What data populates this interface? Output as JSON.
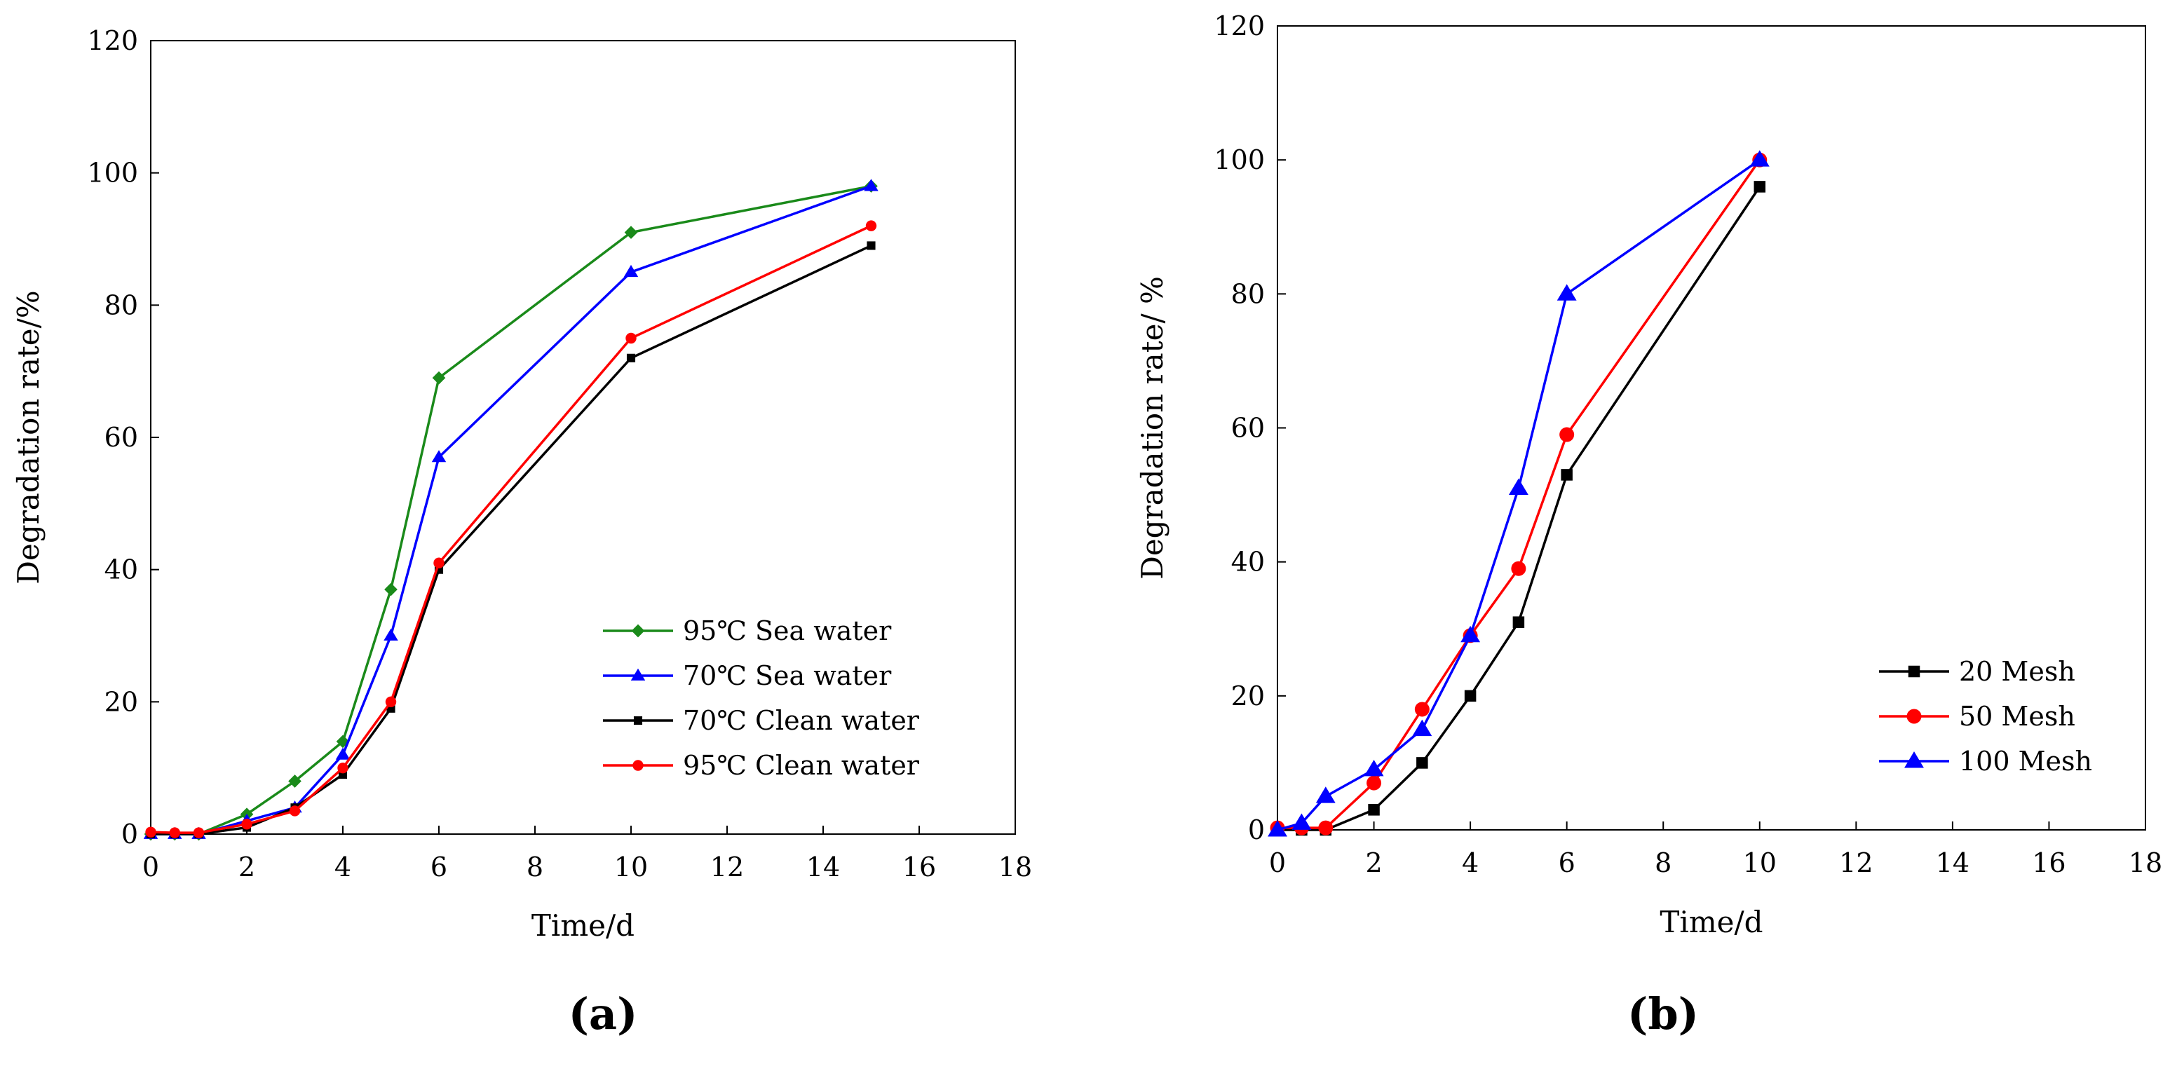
{
  "chart_data": [
    {
      "type": "line",
      "panel_label": "(a)",
      "title": "",
      "xlabel": "Time/d",
      "ylabel": "Degradation rate/%",
      "xlim": [
        0,
        18
      ],
      "ylim": [
        0,
        120
      ],
      "xticks": [
        0,
        2,
        4,
        6,
        8,
        10,
        12,
        14,
        16,
        18
      ],
      "yticks": [
        0,
        20,
        40,
        60,
        80,
        100,
        120
      ],
      "grid": false,
      "legend_position": "bottom-right",
      "series": [
        {
          "name": "95℃ Sea water",
          "color": "#1a8a1a",
          "marker": "diamond",
          "x": [
            0,
            0.5,
            1,
            2,
            3,
            4,
            5,
            6,
            10,
            15
          ],
          "y": [
            0,
            0,
            0,
            3,
            8,
            14,
            37,
            69,
            91,
            98
          ]
        },
        {
          "name": "70℃ Sea water",
          "color": "#0000ff",
          "marker": "triangle",
          "x": [
            0,
            0.5,
            1,
            2,
            3,
            4,
            5,
            6,
            10,
            15
          ],
          "y": [
            0,
            0,
            0,
            2,
            4,
            12,
            30,
            57,
            85,
            98
          ]
        },
        {
          "name": "70℃ Clean water",
          "color": "#000000",
          "marker": "square",
          "x": [
            0,
            0.5,
            1,
            2,
            3,
            4,
            5,
            6,
            10,
            15
          ],
          "y": [
            0,
            0,
            0,
            1,
            4,
            9,
            19,
            40,
            72,
            89
          ]
        },
        {
          "name": "95℃ Clean water",
          "color": "#ff0000",
          "marker": "circle",
          "x": [
            0,
            0.5,
            1,
            2,
            3,
            4,
            5,
            6,
            10,
            15
          ],
          "y": [
            0.3,
            0.2,
            0.2,
            1.5,
            3.5,
            10,
            20,
            41,
            75,
            92
          ]
        }
      ]
    },
    {
      "type": "line",
      "panel_label": "(b)",
      "title": "",
      "xlabel": "Time/d",
      "ylabel": "Degradation rate/ %",
      "xlim": [
        0,
        18
      ],
      "ylim": [
        0,
        120
      ],
      "xticks": [
        0,
        2,
        4,
        6,
        8,
        10,
        12,
        14,
        16,
        18
      ],
      "yticks": [
        0,
        20,
        40,
        60,
        80,
        100,
        120
      ],
      "grid": false,
      "legend_position": "bottom-right",
      "series": [
        {
          "name": "20 Mesh",
          "color": "#000000",
          "marker": "square",
          "x": [
            0,
            0.5,
            1,
            2,
            3,
            4,
            5,
            6,
            10
          ],
          "y": [
            0,
            0,
            0,
            3,
            10,
            20,
            31,
            53,
            96
          ]
        },
        {
          "name": "50 Mesh",
          "color": "#ff0000",
          "marker": "circle",
          "x": [
            0,
            0.5,
            1,
            2,
            3,
            4,
            5,
            6,
            10
          ],
          "y": [
            0.3,
            0.3,
            0.3,
            7,
            18,
            29,
            39,
            59,
            100
          ]
        },
        {
          "name": "100 Mesh",
          "color": "#0000ff",
          "marker": "triangle",
          "x": [
            0,
            0.5,
            1,
            2,
            3,
            4,
            5,
            6,
            10
          ],
          "y": [
            0,
            1,
            5,
            9,
            15,
            29,
            51,
            80,
            100
          ]
        }
      ]
    }
  ]
}
